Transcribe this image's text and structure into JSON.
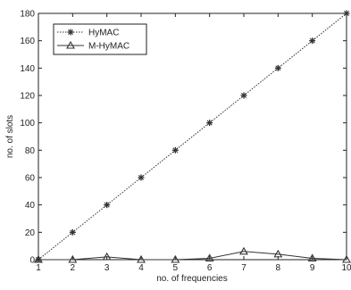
{
  "chart_data": {
    "type": "line",
    "title": "",
    "xlabel": "no. of frequencies",
    "ylabel": "no. of slots",
    "x": [
      1,
      2,
      3,
      4,
      5,
      6,
      7,
      8,
      9,
      10
    ],
    "xlim": [
      1,
      10
    ],
    "ylim": [
      0,
      180
    ],
    "xticks": [
      "1",
      "2",
      "3",
      "4",
      "5",
      "6",
      "7",
      "8",
      "9",
      "10"
    ],
    "yticks": [
      "0",
      "20",
      "40",
      "60",
      "80",
      "100",
      "120",
      "140",
      "160",
      "180"
    ],
    "grid": false,
    "legend_position": "top-left",
    "series": [
      {
        "name": "HyMAC",
        "values": [
          0,
          20,
          40,
          60,
          80,
          100,
          120,
          140,
          160,
          180
        ],
        "marker": "star",
        "line": "dotted",
        "color": "#333333"
      },
      {
        "name": "M-HyMAC",
        "values": [
          0,
          0,
          2,
          0,
          0,
          1,
          6,
          4,
          1,
          0
        ],
        "marker": "triangle",
        "line": "solid",
        "color": "#333333"
      }
    ]
  }
}
